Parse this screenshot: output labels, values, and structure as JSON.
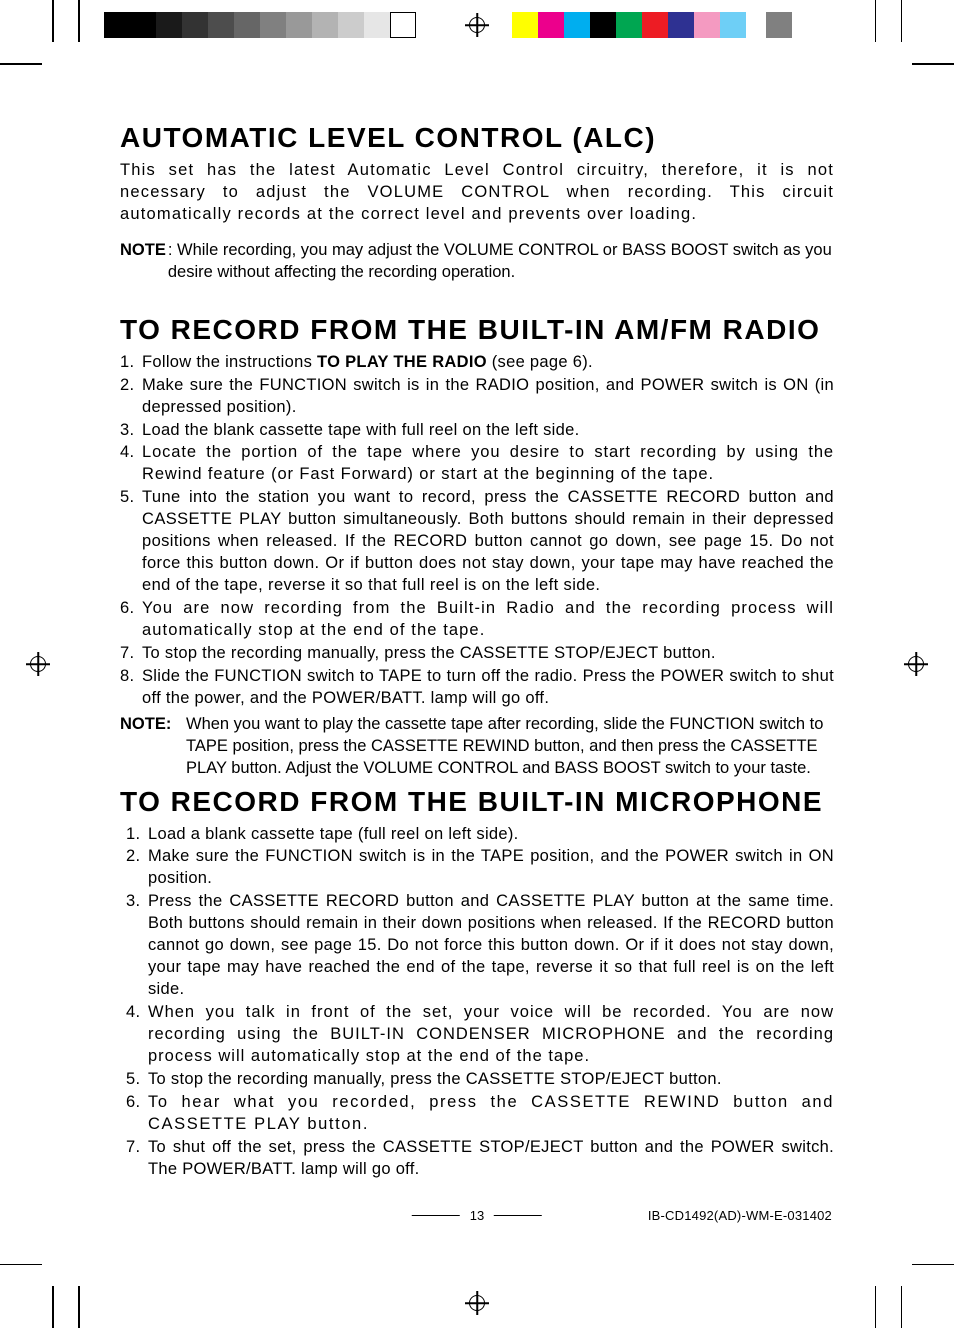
{
  "printer_marks": {
    "gray_bar_swatches": [
      "#000000",
      "#000000",
      "#1a1a1a",
      "#333333",
      "#4d4d4d",
      "#666666",
      "#808080",
      "#999999",
      "#b3b3b3",
      "#cccccc",
      "#e6e6e6",
      "#ffffff"
    ],
    "color_bar_swatches": [
      "#ffff00",
      "#ec008c",
      "#00aeef",
      "#000000",
      "#00a651",
      "#ed1c24",
      "#2e3192",
      "#f49ac1",
      "#6ecff6",
      "#ffffff",
      "#808080"
    ]
  },
  "sections": {
    "alc": {
      "heading": "AUTOMATIC LEVEL CONTROL (ALC)",
      "paragraph": "This set has the latest Automatic Level Control circuitry, therefore, it is not necessary to adjust the VOLUME CONTROL when recording. This circuit automatically records at the correct level and prevents over loading.",
      "note_label": "NOTE",
      "note_body": ": While recording, you may adjust the VOLUME CONTROL or BASS BOOST switch as you desire without affecting the recording operation."
    },
    "radio": {
      "heading": "TO RECORD FROM THE BUILT-IN AM/FM RADIO",
      "step1_pre": "Follow the instructions ",
      "step1_bold": "TO PLAY THE RADIO",
      "step1_post": " (see page 6).",
      "step2": "Make sure the FUNCTION switch is in the RADIO position, and POWER switch is ON (in depressed position).",
      "step3": "Load the blank cassette tape with full reel on the left side.",
      "step4": "Locate the portion of the tape where you desire to start recording by using the Rewind feature (or Fast Forward) or start at the beginning of the tape.",
      "step5": "Tune into the station you want to record, press the CASSETTE RECORD button and CASSETTE PLAY button simultaneously. Both buttons should remain in their depressed positions when released. If the RECORD button cannot go down, see page 15. Do not force this button down. Or if button does not stay down, your tape may have reached the end of the tape, reverse it so that full reel is on the left side.",
      "step6": "You are now recording from the Built-in Radio and the recording process will automatically stop at the end of the tape.",
      "step7": "To stop the recording manually, press the CASSETTE STOP/EJECT button.",
      "step8": "Slide the FUNCTION switch to TAPE to turn off the radio. Press the POWER switch to shut off the power, and the POWER/BATT. lamp will go off.",
      "note_label": "NOTE:",
      "note_body": "When you want to play the cassette tape after recording, slide the FUNCTION switch to TAPE position, press the CASSETTE REWIND button, and then press the CASSETTE PLAY button. Adjust the VOLUME CONTROL and BASS BOOST switch to your taste."
    },
    "mic": {
      "heading": "TO RECORD FROM THE BUILT-IN MICROPHONE",
      "step1": "Load a blank cassette tape (full reel on left side).",
      "step2": "Make sure the FUNCTION switch is in the TAPE position, and the POWER switch in ON position.",
      "step3": "Press the CASSETTE RECORD button and CASSETTE PLAY button at the same time. Both buttons should remain in their down positions when released. If the RECORD button cannot go down, see page 15. Do not force this button down. Or if it does not stay down, your tape may have reached the end of the tape, reverse it so that full reel is on the left side.",
      "step4": "When you talk in front of the set, your voice will be recorded. You are now recording using the BUILT-IN CONDENSER MICROPHONE and the recording process will automatically stop at the end of the tape.",
      "step5": "To stop the recording manually, press the CASSETTE STOP/EJECT button.",
      "step6": "To hear what you recorded, press the CASSETTE REWIND button and CASSETTE PLAY button.",
      "step7": "To shut off the set, press the CASSETTE STOP/EJECT button and the POWER switch. The POWER/BATT. lamp will go off."
    }
  },
  "footer": {
    "page_number": "13",
    "doc_id": "IB-CD1492(AD)-WM-E-031402"
  }
}
